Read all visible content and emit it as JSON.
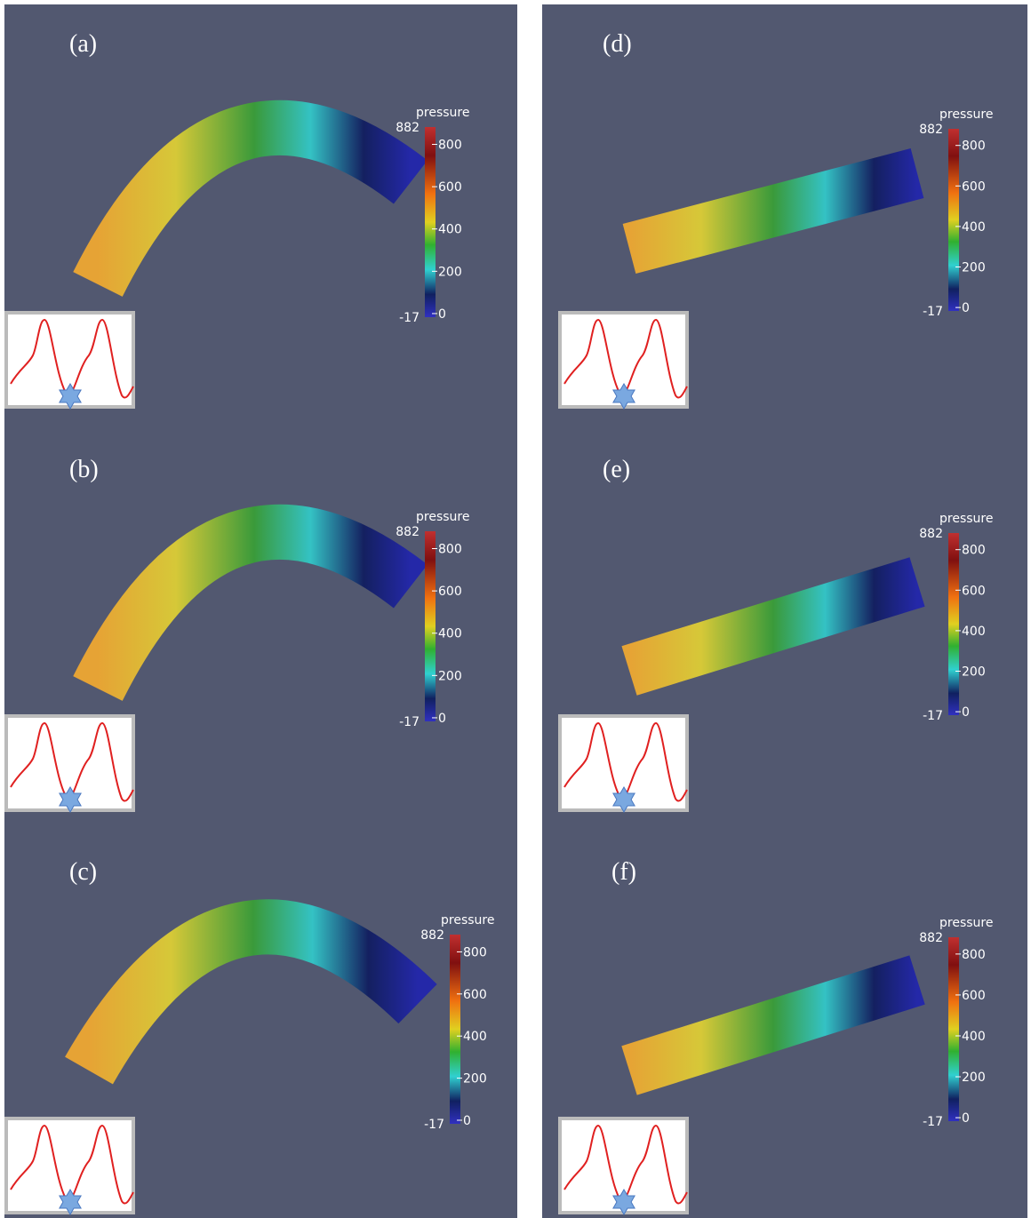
{
  "panels": [
    {
      "label": "(a)"
    },
    {
      "label": "(b)"
    },
    {
      "label": "(c)"
    },
    {
      "label": "(d)"
    },
    {
      "label": "(e)"
    },
    {
      "label": "(f)"
    }
  ],
  "colorbar": {
    "title": "pressure",
    "max": 882,
    "min": -17,
    "ticks": [
      800,
      600,
      400,
      200,
      0
    ]
  }
}
